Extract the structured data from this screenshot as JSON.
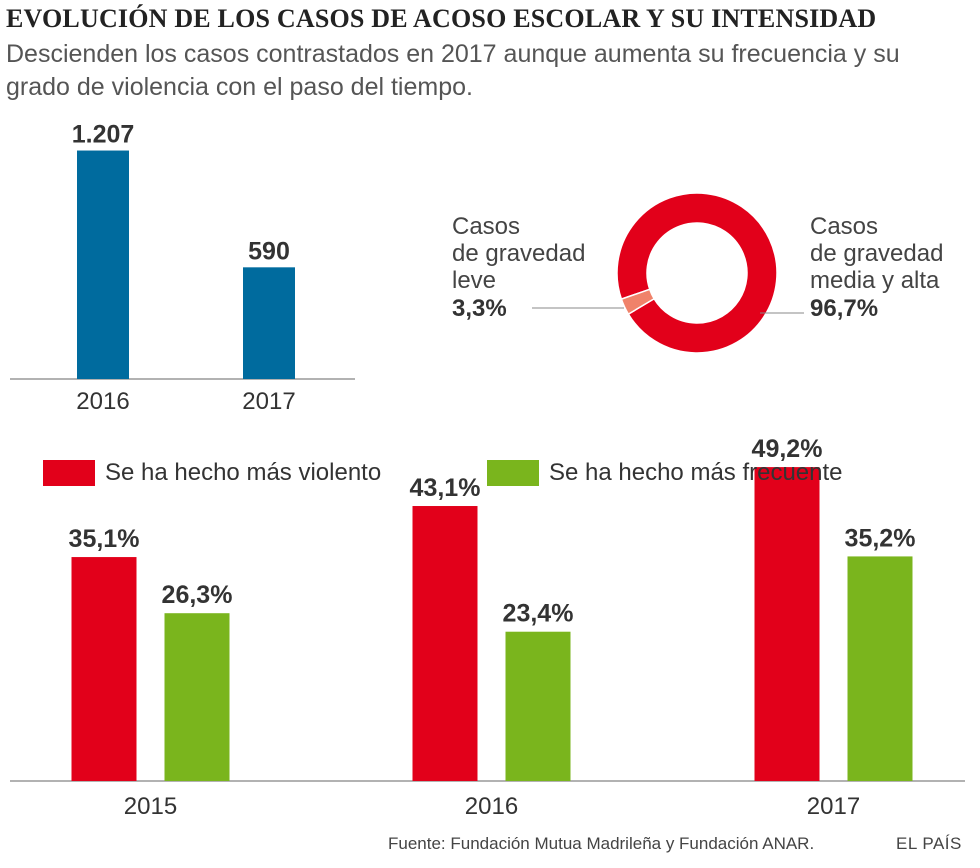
{
  "header": {
    "title": "EVOLUCIÓN DE LOS CASOS DE ACOSO ESCOLAR Y SU INTENSIDAD",
    "subtitle": "Descienden los casos contrastados en 2017 aunque aumenta su frecuencia y su grado de violencia con el paso del tiempo."
  },
  "colors": {
    "blue": "#006b9e",
    "red": "#e2001a",
    "green": "#7ab51d",
    "salmon": "#f0826a",
    "axis": "#999999"
  },
  "chart_data": [
    {
      "type": "bar",
      "title": "",
      "categories": [
        "2016",
        "2017"
      ],
      "values": [
        1207,
        590
      ],
      "value_labels": [
        "1.207",
        "590"
      ],
      "ylim": [
        0,
        1400
      ],
      "grid": false
    },
    {
      "type": "pie",
      "style": "donut",
      "slices": [
        {
          "label_lines": [
            "Casos",
            "de gravedad",
            "media y alta"
          ],
          "value": 96.7,
          "value_label": "96,7%",
          "color": "#e2001a"
        },
        {
          "label_lines": [
            "Casos",
            "de gravedad",
            "leve"
          ],
          "value": 3.3,
          "value_label": "3,3%",
          "color": "#f0826a"
        }
      ]
    },
    {
      "type": "bar",
      "categories": [
        "2015",
        "2016",
        "2017"
      ],
      "series": [
        {
          "name": "Se ha hecho más violento",
          "values": [
            35.1,
            43.1,
            49.2
          ],
          "value_labels": [
            "35,1%",
            "43,1%",
            "49,2%"
          ],
          "color": "#e2001a"
        },
        {
          "name": "Se ha hecho más frecuente",
          "values": [
            26.3,
            23.4,
            35.2
          ],
          "value_labels": [
            "26,3%",
            "23,4%",
            "35,2%"
          ],
          "color": "#7ab51d"
        }
      ],
      "ylim": [
        0,
        60
      ],
      "legend": "top-left",
      "grid": false
    }
  ],
  "footer": {
    "source": "Fuente: Fundación Mutua Madrileña y Fundación ANAR.",
    "brand": "EL PAÍS"
  }
}
